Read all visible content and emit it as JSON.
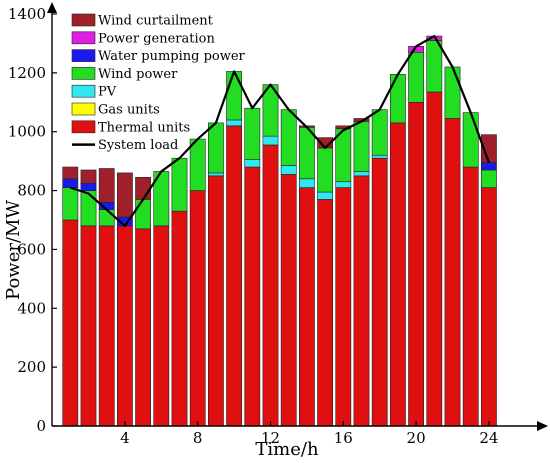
{
  "chart_data": {
    "type": "bar",
    "stacked": true,
    "xlabel": "Time/h",
    "ylabel": "Power/MW",
    "ylim": [
      0,
      1400
    ],
    "yticks": [
      0,
      200,
      400,
      600,
      800,
      1000,
      1200,
      1400
    ],
    "xticks": [
      4,
      8,
      12,
      16,
      20,
      24
    ],
    "x": [
      1,
      2,
      3,
      4,
      5,
      6,
      7,
      8,
      9,
      10,
      11,
      12,
      13,
      14,
      15,
      16,
      17,
      18,
      19,
      20,
      21,
      22,
      23,
      24
    ],
    "grid": false,
    "legend_position": "top-left",
    "series": [
      {
        "name": "Thermal units",
        "color": "#e01010",
        "values": [
          700,
          680,
          680,
          680,
          670,
          680,
          730,
          800,
          850,
          1020,
          880,
          955,
          855,
          810,
          770,
          810,
          850,
          910,
          1030,
          1100,
          1135,
          1045,
          880,
          810
        ]
      },
      {
        "name": "Gas units",
        "color": "#ffff00",
        "values": [
          0,
          0,
          0,
          0,
          0,
          0,
          0,
          0,
          0,
          0,
          0,
          0,
          0,
          0,
          0,
          0,
          0,
          0,
          0,
          0,
          0,
          0,
          0,
          0
        ]
      },
      {
        "name": "PV",
        "color": "#30e8f0",
        "values": [
          0,
          0,
          0,
          0,
          0,
          0,
          0,
          0,
          10,
          20,
          25,
          30,
          30,
          30,
          25,
          20,
          15,
          10,
          0,
          0,
          0,
          0,
          0,
          0
        ]
      },
      {
        "name": "Wind power",
        "color": "#22dd22",
        "values": [
          110,
          120,
          55,
          0,
          100,
          185,
          180,
          175,
          170,
          165,
          175,
          175,
          190,
          175,
          150,
          180,
          170,
          155,
          165,
          170,
          175,
          175,
          185,
          60
        ]
      },
      {
        "name": "Water pumping power",
        "color": "#1a1aee",
        "values": [
          30,
          25,
          25,
          30,
          0,
          0,
          0,
          0,
          0,
          0,
          0,
          0,
          0,
          0,
          0,
          0,
          0,
          0,
          0,
          0,
          0,
          0,
          0,
          25
        ]
      },
      {
        "name": "Power generation",
        "color": "#e020e0",
        "values": [
          0,
          0,
          0,
          0,
          0,
          0,
          0,
          0,
          0,
          0,
          0,
          0,
          0,
          0,
          0,
          0,
          0,
          0,
          0,
          20,
          15,
          0,
          0,
          0
        ]
      },
      {
        "name": "Wind curtailment",
        "color": "#a0202a",
        "values": [
          40,
          45,
          115,
          150,
          75,
          0,
          0,
          0,
          0,
          0,
          0,
          0,
          0,
          5,
          35,
          10,
          10,
          0,
          0,
          0,
          0,
          0,
          0,
          95
        ]
      }
    ],
    "line_series": {
      "name": "System load",
      "color": "#000000",
      "values": [
        810,
        790,
        735,
        680,
        770,
        865,
        910,
        975,
        1030,
        1205,
        1080,
        1160,
        1075,
        1015,
        945,
        1005,
        1035,
        1075,
        1195,
        1290,
        1325,
        1220,
        1065,
        895
      ]
    },
    "legend_order": [
      "Wind curtailment",
      "Power generation",
      "Water pumping power",
      "Wind power",
      "PV",
      "Gas units",
      "Thermal units",
      "System load"
    ]
  }
}
